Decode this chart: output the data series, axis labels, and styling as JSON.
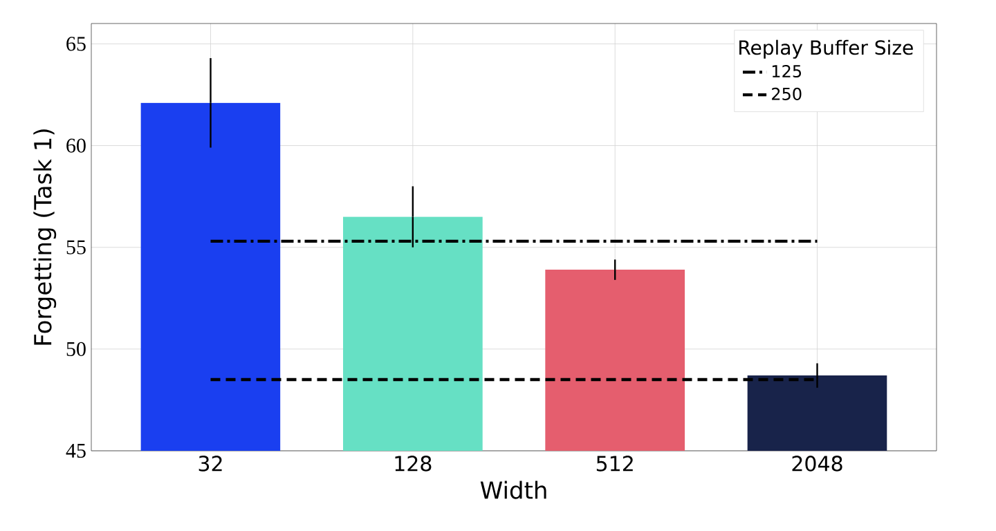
{
  "chart_data": {
    "type": "bar",
    "xlabel": "Width",
    "ylabel": "Forgetting (Task 1)",
    "legend_title": "Replay Buffer Size",
    "categories": [
      "32",
      "128",
      "512",
      "2048"
    ],
    "series": [
      {
        "values": [
          62.1,
          56.5,
          53.9,
          48.7
        ],
        "errors": [
          2.2,
          1.5,
          0.5,
          0.6
        ],
        "colors": [
          "#1a3ff0",
          "#66e0c4",
          "#e55e6e",
          "#18234a"
        ]
      },
      {
        "type": "line",
        "name": "125",
        "color": "#000000",
        "line_style": "dashdot",
        "values": [
          55.3,
          55.3,
          55.3,
          55.3
        ]
      },
      {
        "type": "line",
        "name": "250",
        "color": "#000000",
        "line_style": "dashed",
        "values": [
          48.5,
          48.5,
          48.5,
          48.5
        ]
      }
    ],
    "ylim": [
      45,
      66
    ],
    "yticks": [
      45,
      50,
      55,
      60,
      65
    ],
    "grid": true,
    "legend": "top right"
  }
}
